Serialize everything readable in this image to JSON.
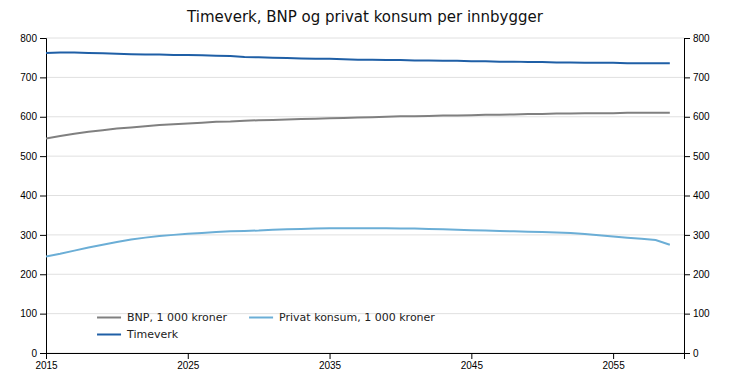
{
  "chart_data": {
    "type": "line",
    "title": "Timeverk, BNP og privat konsum per innbygger",
    "x": [
      2015,
      2016,
      2017,
      2018,
      2019,
      2020,
      2021,
      2022,
      2023,
      2024,
      2025,
      2026,
      2027,
      2028,
      2029,
      2030,
      2031,
      2032,
      2033,
      2034,
      2035,
      2036,
      2037,
      2038,
      2039,
      2040,
      2041,
      2042,
      2043,
      2044,
      2045,
      2046,
      2047,
      2048,
      2049,
      2050,
      2051,
      2052,
      2053,
      2054,
      2055,
      2056,
      2057,
      2058,
      2059
    ],
    "series": [
      {
        "name": "BNP, 1 000 kroner",
        "color": "#808080",
        "values": [
          545,
          551,
          557,
          562,
          566,
          570,
          573,
          576,
          579,
          581,
          583,
          585,
          587,
          588,
          590,
          591,
          592,
          593,
          594,
          595,
          596,
          597,
          598,
          599,
          600,
          601,
          601,
          602,
          603,
          603,
          604,
          605,
          605,
          606,
          607,
          607,
          608,
          608,
          609,
          609,
          609,
          610,
          610,
          610,
          610
        ]
      },
      {
        "name": "Privat konsum, 1 000 kroner",
        "color": "#6baed6",
        "values": [
          245,
          252,
          260,
          268,
          275,
          282,
          288,
          293,
          297,
          300,
          303,
          305,
          307,
          309,
          310,
          311,
          313,
          314,
          315,
          316,
          317,
          317,
          317,
          317,
          317,
          316,
          316,
          315,
          314,
          313,
          312,
          311,
          310,
          309,
          308,
          307,
          306,
          305,
          302,
          299,
          296,
          293,
          290,
          287,
          275
        ]
      },
      {
        "name": "Timeverk",
        "color": "#1f5fa6",
        "values": [
          762,
          763,
          763,
          762,
          761,
          760,
          759,
          758,
          758,
          757,
          757,
          756,
          755,
          754,
          752,
          751,
          750,
          749,
          748,
          747,
          747,
          746,
          745,
          745,
          744,
          744,
          743,
          743,
          742,
          742,
          741,
          741,
          740,
          740,
          739,
          739,
          738,
          738,
          737,
          737,
          737,
          736,
          736,
          736,
          736
        ]
      }
    ],
    "xlim": [
      2015,
      2060
    ],
    "xticks": [
      2015,
      2025,
      2035,
      2045,
      2055
    ],
    "ylim": [
      0,
      800
    ],
    "yticks": [
      0,
      100,
      200,
      300,
      400,
      500,
      600,
      700,
      800
    ],
    "y2lim": [
      0,
      800
    ],
    "y2ticks": [
      0,
      100,
      200,
      300,
      400,
      500,
      600,
      700,
      800
    ],
    "grid": true,
    "legend": "lower left"
  }
}
